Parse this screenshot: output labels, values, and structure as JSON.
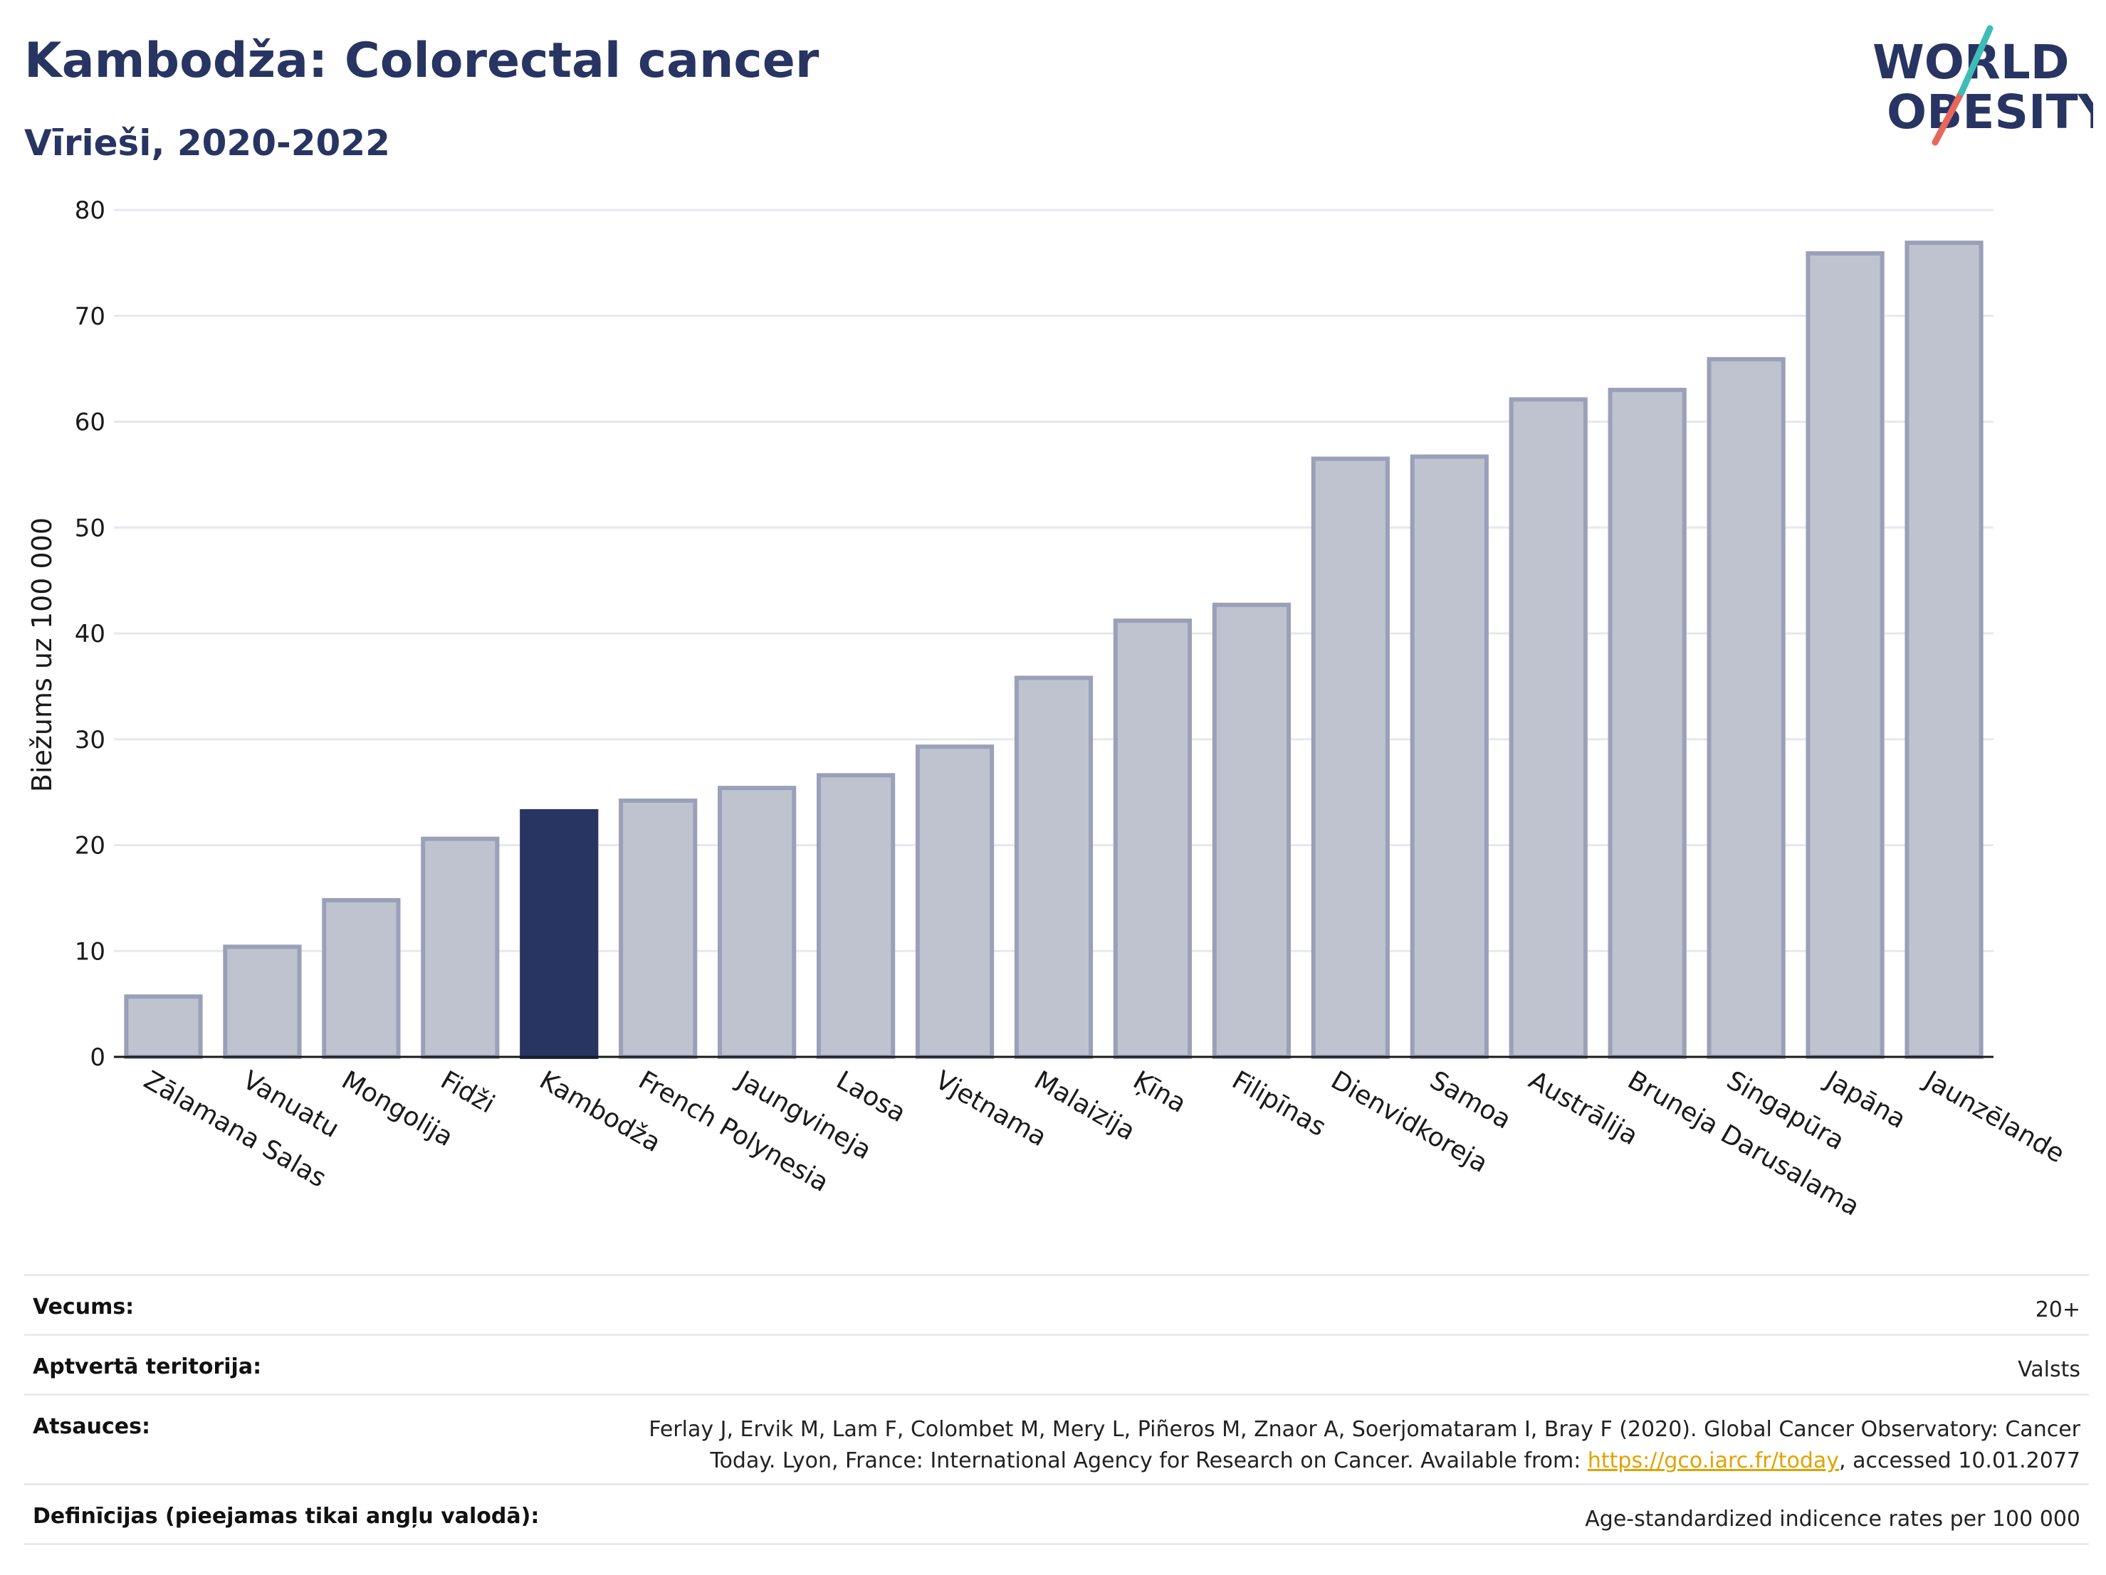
{
  "header": {
    "title": "Kambodža: Colorectal cancer",
    "subtitle": "Vīrieši, 2020-2022"
  },
  "logo": {
    "line1": "WORLD",
    "line2": "OBESITY"
  },
  "chart_data": {
    "type": "bar",
    "ylabel": "Biežums uz 100 000",
    "xlabel": "",
    "ylim": [
      0,
      80
    ],
    "yticks": [
      0,
      10,
      20,
      30,
      40,
      50,
      60,
      70,
      80
    ],
    "grid": true,
    "categories": [
      "Zālamana Salas",
      "Vanuatu",
      "Mongolija",
      "Fidži",
      "Kambodža",
      "French Polynesia",
      "Jaungvineja",
      "Laosa",
      "Vjetnama",
      "Malaizija",
      "Ķīna",
      "Filipīnas",
      "Dienvidkoreja",
      "Samoa",
      "Austrālija",
      "Bruneja Darusalama",
      "Singapūra",
      "Japāna",
      "Jaunzēlande"
    ],
    "values": [
      5.7,
      10.4,
      14.8,
      20.6,
      23.2,
      24.2,
      25.4,
      26.6,
      29.3,
      35.8,
      41.2,
      42.7,
      56.5,
      56.7,
      62.1,
      63.0,
      65.9,
      75.9,
      76.9
    ],
    "highlight": "Kambodža",
    "colors": {
      "bar": "#bfc3d0",
      "bar_border": "#9aa0b8",
      "highlight": "#283462"
    }
  },
  "meta": [
    {
      "key": "Vecums:",
      "value": "20+"
    },
    {
      "key": "Aptvertā teritorija:",
      "value": "Valsts"
    },
    {
      "key": "Atsauces:",
      "value_line1": "Ferlay J, Ervik M, Lam F, Colombet M, Mery L, Piñeros M, Znaor A, Soerjomataram I, Bray F (2020). Global Cancer Observatory: Cancer",
      "value_line2_pre": "Today. Lyon, France: International Agency for Research on Cancer. Available from: ",
      "link": "https://gco.iarc.fr/today",
      "value_line2_post": ", accessed 10.01.2077"
    },
    {
      "key": "Definīcijas (pieejamas tikai angļu valodā):",
      "value": "Age-standardized indicence rates per 100 000"
    }
  ]
}
